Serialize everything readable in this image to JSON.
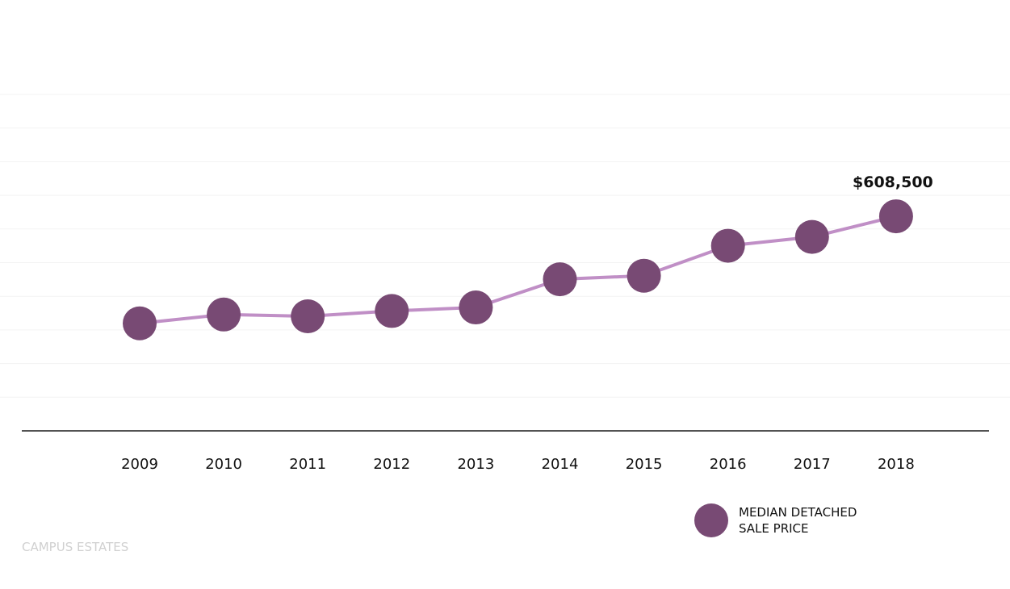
{
  "chart_data": {
    "type": "line",
    "categories": [
      "2009",
      "2010",
      "2011",
      "2012",
      "2013",
      "2014",
      "2015",
      "2016",
      "2017",
      "2018"
    ],
    "series": [
      {
        "name": "MEDIAN DETACHED SALE PRICE",
        "values": [
          305000,
          330000,
          325000,
          340000,
          350000,
          430000,
          440000,
          525000,
          550000,
          608500
        ]
      }
    ],
    "annotations": [
      {
        "category": "2018",
        "text": "$608,500"
      }
    ],
    "ylim": [
      0,
      1000000
    ],
    "grid": true,
    "legend_position": "bottom-right",
    "line_color": "#c08fc6",
    "marker_color": "#784a74",
    "title": "",
    "xlabel": "",
    "ylabel": ""
  },
  "legend": {
    "line1": "MEDIAN DETACHED",
    "line2": "SALE PRICE"
  },
  "watermark": "CAMPUS ESTATES"
}
